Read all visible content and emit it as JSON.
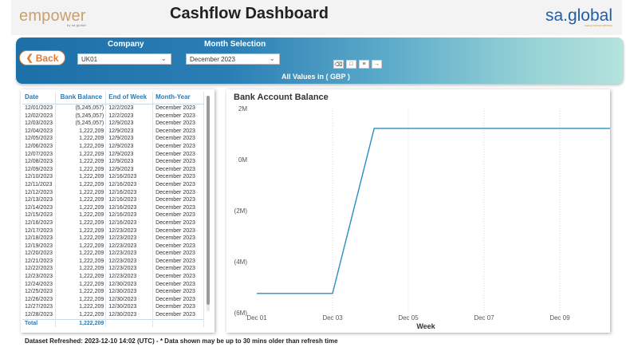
{
  "header": {
    "logo_left": "empower",
    "logo_left_sub": "by sa.global",
    "title": "Cashflow Dashboard",
    "logo_right": "sa.global",
    "logo_right_sub": "making business effortless"
  },
  "filters": {
    "back_label": "Back",
    "company_label": "Company",
    "company_value": "UK01",
    "month_label": "Month Selection",
    "month_value": "December 2023",
    "all_values": "All Values in ( GBP )"
  },
  "table": {
    "columns": [
      "Date",
      "Bank Balance",
      "End of Week",
      "Month-Year"
    ],
    "rows": [
      [
        "12/01/2023",
        "(5,245,057)",
        "12/2/2023",
        "December 2023"
      ],
      [
        "12/02/2023",
        "(5,245,057)",
        "12/2/2023",
        "December 2023"
      ],
      [
        "12/03/2023",
        "(5,245,057)",
        "12/9/2023",
        "December 2023"
      ],
      [
        "12/04/2023",
        "1,222,209",
        "12/9/2023",
        "December 2023"
      ],
      [
        "12/05/2023",
        "1,222,209",
        "12/9/2023",
        "December 2023"
      ],
      [
        "12/06/2023",
        "1,222,209",
        "12/9/2023",
        "December 2023"
      ],
      [
        "12/07/2023",
        "1,222,209",
        "12/9/2023",
        "December 2023"
      ],
      [
        "12/08/2023",
        "1,222,209",
        "12/9/2023",
        "December 2023"
      ],
      [
        "12/09/2023",
        "1,222,209",
        "12/9/2023",
        "December 2023"
      ],
      [
        "12/10/2023",
        "1,222,209",
        "12/16/2023",
        "December 2023"
      ],
      [
        "12/11/2023",
        "1,222,209",
        "12/16/2023",
        "December 2023"
      ],
      [
        "12/12/2023",
        "1,222,209",
        "12/16/2023",
        "December 2023"
      ],
      [
        "12/13/2023",
        "1,222,209",
        "12/16/2023",
        "December 2023"
      ],
      [
        "12/14/2023",
        "1,222,209",
        "12/16/2023",
        "December 2023"
      ],
      [
        "12/15/2023",
        "1,222,209",
        "12/16/2023",
        "December 2023"
      ],
      [
        "12/16/2023",
        "1,222,209",
        "12/16/2023",
        "December 2023"
      ],
      [
        "12/17/2023",
        "1,222,209",
        "12/23/2023",
        "December 2023"
      ],
      [
        "12/18/2023",
        "1,222,209",
        "12/23/2023",
        "December 2023"
      ],
      [
        "12/19/2023",
        "1,222,209",
        "12/23/2023",
        "December 2023"
      ],
      [
        "12/20/2023",
        "1,222,209",
        "12/23/2023",
        "December 2023"
      ],
      [
        "12/21/2023",
        "1,222,209",
        "12/23/2023",
        "December 2023"
      ],
      [
        "12/22/2023",
        "1,222,209",
        "12/23/2023",
        "December 2023"
      ],
      [
        "12/23/2023",
        "1,222,209",
        "12/23/2023",
        "December 2023"
      ],
      [
        "12/24/2023",
        "1,222,209",
        "12/30/2023",
        "December 2023"
      ],
      [
        "12/25/2023",
        "1,222,209",
        "12/30/2023",
        "December 2023"
      ],
      [
        "12/26/2023",
        "1,222,209",
        "12/30/2023",
        "December 2023"
      ],
      [
        "12/27/2023",
        "1,222,209",
        "12/30/2023",
        "December 2023"
      ],
      [
        "12/28/2023",
        "1,222,209",
        "12/30/2023",
        "December 2023"
      ]
    ],
    "total_label": "Total",
    "total_value": "1,222,209"
  },
  "chart_data": {
    "type": "line",
    "title": "Bank Account Balance",
    "xlabel": "Week",
    "ylabel": "",
    "x_ticks": [
      "Dec 01",
      "Dec 03",
      "Dec 05",
      "Dec 07",
      "Dec 09"
    ],
    "y_ticks": [
      "2M",
      "0M",
      "(2M)",
      "(4M)",
      "(6M)"
    ],
    "y_tick_values": [
      2000000,
      0,
      -2000000,
      -4000000,
      -6000000
    ],
    "ylim": [
      -6000000,
      2000000
    ],
    "xlim_days": [
      1,
      11.5
    ],
    "grid": true,
    "line_color": "#2a8ec2",
    "series": [
      {
        "points": [
          {
            "x": "Dec 01",
            "day": 1,
            "y": -5245057
          },
          {
            "x": "Dec 02",
            "day": 2,
            "y": -5245057
          },
          {
            "x": "Dec 03",
            "day": 3,
            "y": -5245057
          },
          {
            "x": "Dec 04",
            "day": 4.1,
            "y": 1222209
          },
          {
            "x": "Dec 11",
            "day": 11.3,
            "y": 1222209
          }
        ]
      }
    ]
  },
  "footer": {
    "text": "Dataset Refreshed: 2023-12-10 14:02 (UTC) - * Data shown may be up to 30 mins older than refresh time"
  }
}
